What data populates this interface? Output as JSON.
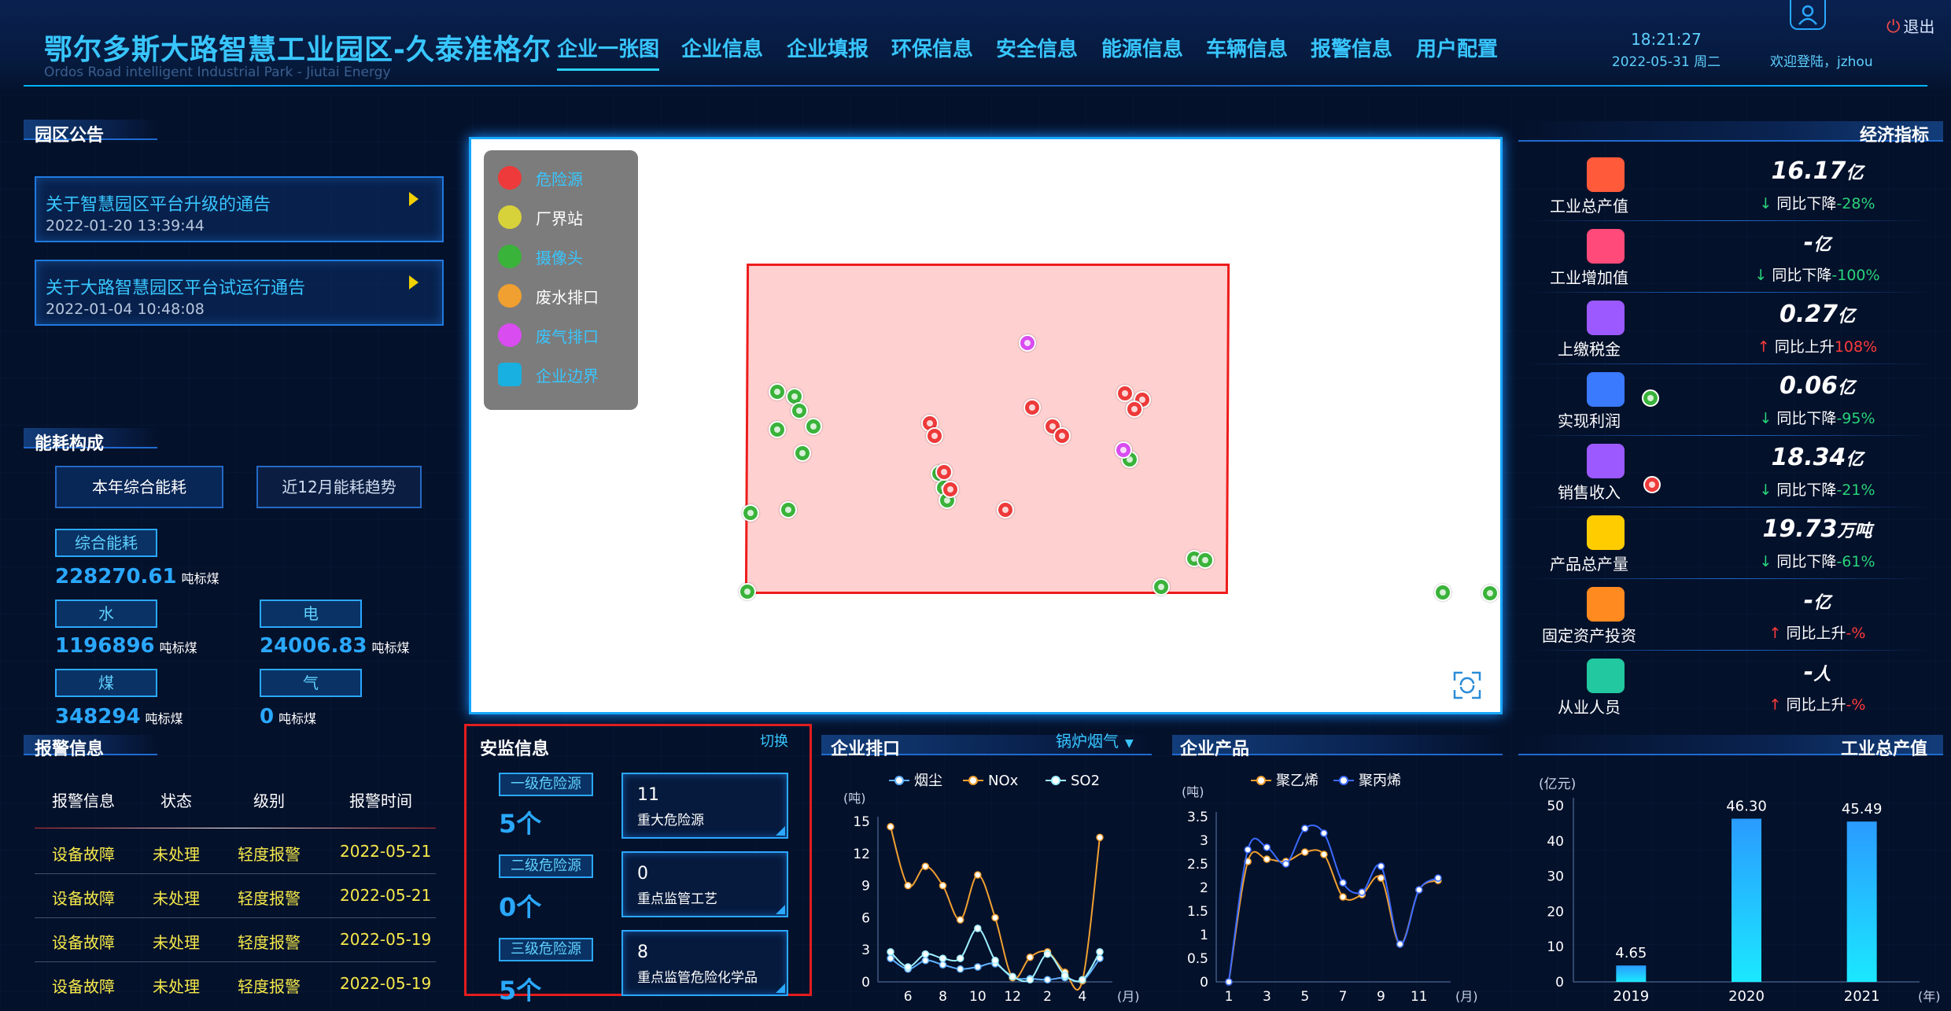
{
  "header": {
    "title": "鄂尔多斯大路智慧工业园区-久泰准格尔",
    "subtitle": "Ordos Road intelligent Industrial Park - Jiutai Energy",
    "nav": [
      "企业一张图",
      "企业信息",
      "企业填报",
      "环保信息",
      "安全信息",
      "能源信息",
      "车辆信息",
      "报警信息",
      "用户配置"
    ],
    "time": "18:21:27",
    "date": "2022-05-31 周二",
    "welcome": "欢迎登陆，jzhou",
    "logout": "退出"
  },
  "notices": {
    "title": "园区公告",
    "items": [
      {
        "title": "关于智慧园区平台升级的通告",
        "date": "2022-01-20 13:39:44"
      },
      {
        "title": "关于大路智慧园区平台试运行通告",
        "date": "2022-01-04 10:48:08"
      }
    ]
  },
  "energy": {
    "title": "能耗构成",
    "tabs": [
      "本年综合能耗",
      "近12月能耗趋势"
    ],
    "unit": "吨标煤",
    "items": [
      {
        "label": "综合能耗",
        "value": "228270.61"
      },
      {
        "label": "水",
        "value": "1196896"
      },
      {
        "label": "电",
        "value": "24006.83"
      },
      {
        "label": "煤",
        "value": "348294"
      },
      {
        "label": "气",
        "value": "0"
      }
    ]
  },
  "alarms": {
    "title": "报警信息",
    "headers": [
      "报警信息",
      "状态",
      "级别",
      "报警时间"
    ],
    "rows": [
      [
        "设备故障",
        "未处理",
        "轻度报警",
        "2022-05-21"
      ],
      [
        "设备故障",
        "未处理",
        "轻度报警",
        "2022-05-21"
      ],
      [
        "设备故障",
        "未处理",
        "轻度报警",
        "2022-05-19"
      ],
      [
        "设备故障",
        "未处理",
        "轻度报警",
        "2022-05-19"
      ]
    ]
  },
  "map": {
    "legend": [
      {
        "label": "危险源",
        "color": "#ee3a3a"
      },
      {
        "label": "厂界站",
        "color": "#d8d23a"
      },
      {
        "label": "摄像头",
        "color": "#3ab33a"
      },
      {
        "label": "废水排口",
        "color": "#f0a030"
      },
      {
        "label": "废气排口",
        "color": "#d84cf0"
      },
      {
        "label": "企业边界",
        "color": "#18b0e0"
      }
    ],
    "legend_text_colors": [
      "#38c6ff",
      "#ffffff",
      "#38c6ff",
      "#ffffff",
      "#38c6ff",
      "#38c6ff"
    ]
  },
  "safety": {
    "title": "安监信息",
    "switch": "切换",
    "levels": [
      {
        "label": "一级危险源",
        "count": "5个"
      },
      {
        "label": "二级危险源",
        "count": "0个"
      },
      {
        "label": "三级危险源",
        "count": "5个"
      }
    ],
    "cards": [
      {
        "num": "11",
        "label": "重大危险源"
      },
      {
        "num": "0",
        "label": "重点监管工艺"
      },
      {
        "num": "8",
        "label": "重点监管危险化学品"
      }
    ]
  },
  "emission": {
    "title": "企业排口",
    "selector": "锅炉烟气"
  },
  "products": {
    "title": "企业产品"
  },
  "output": {
    "title": "工业总产值"
  },
  "econ": {
    "title": "经济指标",
    "items": [
      {
        "label": "工业总产值",
        "value": "16.17",
        "unit": "亿",
        "yoy_text": "同比下降",
        "yoy": "-28%",
        "dir": "down",
        "color": "#ff5a3a"
      },
      {
        "label": "工业增加值",
        "value": "-",
        "unit": "亿",
        "yoy_text": "同比下降",
        "yoy": "-100%",
        "dir": "down",
        "color": "#ff4a7a"
      },
      {
        "label": "上缴税金",
        "value": "0.27",
        "unit": "亿",
        "yoy_text": "同比上升",
        "yoy": "108%",
        "dir": "up",
        "color": "#9b59ff"
      },
      {
        "label": "实现利润",
        "value": "0.06",
        "unit": "亿",
        "yoy_text": "同比下降",
        "yoy": "-95%",
        "dir": "down",
        "color": "#3a7aff"
      },
      {
        "label": "销售收入",
        "value": "18.34",
        "unit": "亿",
        "yoy_text": "同比下降",
        "yoy": "-21%",
        "dir": "down",
        "color": "#9b59ff"
      },
      {
        "label": "产品总产量",
        "value": "19.73",
        "unit": "万吨",
        "yoy_text": "同比下降",
        "yoy": "-61%",
        "dir": "down",
        "color": "#ffcc00"
      },
      {
        "label": "固定资产投资",
        "value": "-",
        "unit": "亿",
        "yoy_text": "同比上升",
        "yoy": "-%",
        "dir": "up",
        "color": "#ff8a20"
      },
      {
        "label": "从业人员",
        "value": "-",
        "unit": "人",
        "yoy_text": "同比上升",
        "yoy": "-%",
        "dir": "up",
        "color": "#22c8a0"
      }
    ]
  },
  "chart_data": [
    {
      "type": "line",
      "ylabel": "(吨)",
      "xlabel": "(月)",
      "legend_position": "top",
      "x_ticks": [
        "6",
        "8",
        "10",
        "12",
        "2",
        "4"
      ],
      "ylim": [
        0,
        15
      ],
      "y_ticks": [
        0,
        3,
        6,
        9,
        12,
        15
      ],
      "x": [
        "5",
        "6",
        "7",
        "8",
        "9",
        "10",
        "11",
        "12",
        "1",
        "2",
        "3",
        "4",
        "5"
      ],
      "series": [
        {
          "name": "烟尘",
          "color": "#5fb0ff",
          "values": [
            2.2,
            1.2,
            2.0,
            1.6,
            1.2,
            1.4,
            1.7,
            0.4,
            0.3,
            0.2,
            0.4,
            0.1,
            2.2
          ]
        },
        {
          "name": "NOx",
          "color": "#f0a030",
          "values": [
            14.5,
            9.0,
            10.8,
            9.0,
            5.8,
            10.0,
            6.0,
            0.4,
            2.3,
            2.8,
            0.9,
            0.1,
            13.5
          ]
        },
        {
          "name": "SO2",
          "color": "#9ef0ff",
          "values": [
            2.8,
            1.4,
            2.6,
            2.2,
            2.2,
            5.0,
            2.0,
            0.5,
            0.2,
            2.6,
            0.6,
            0.2,
            2.8
          ]
        }
      ]
    },
    {
      "type": "line",
      "ylabel": "(吨)",
      "xlabel": "(月)",
      "legend_position": "top",
      "x_ticks": [
        "1",
        "3",
        "5",
        "7",
        "9",
        "11"
      ],
      "ylim": [
        0,
        3.5
      ],
      "y_ticks": [
        0,
        0.5,
        1,
        1.5,
        2,
        2.5,
        3,
        3.5
      ],
      "x": [
        "1",
        "2",
        "3",
        "4",
        "5",
        "6",
        "7",
        "8",
        "9",
        "10",
        "11",
        "12"
      ],
      "series": [
        {
          "name": "聚乙烯",
          "color": "#f0a030",
          "values": [
            0,
            2.55,
            2.6,
            2.55,
            2.75,
            2.7,
            1.8,
            1.85,
            2.2,
            0.8,
            1.95,
            2.15
          ]
        },
        {
          "name": "聚丙烯",
          "color": "#3a6aff",
          "values": [
            0,
            2.8,
            2.85,
            2.5,
            3.25,
            3.15,
            2.1,
            1.9,
            2.45,
            0.8,
            1.95,
            2.2
          ]
        }
      ]
    },
    {
      "type": "bar",
      "ylabel": "(亿元)",
      "xlabel": "(年)",
      "categories": [
        "2019",
        "2020",
        "2021"
      ],
      "values": [
        4.65,
        46.3,
        45.49
      ],
      "ylim": [
        0,
        50
      ],
      "y_ticks": [
        0,
        10,
        20,
        30,
        40,
        50
      ]
    }
  ]
}
